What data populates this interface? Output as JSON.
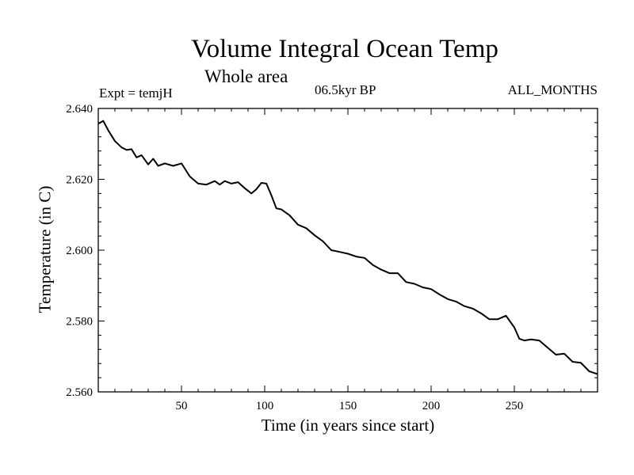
{
  "chart_data": {
    "type": "line",
    "title": "Volume Integral Ocean Temp",
    "subtitle": "Whole area",
    "left_label": "Expt = temjH",
    "center_label": "06.5kyr BP",
    "right_label": "ALL_MONTHS",
    "xlabel": "Time (in years since start)",
    "ylabel": "Temperature (in C)",
    "xlim": [
      0,
      300
    ],
    "ylim": [
      2.56,
      2.64
    ],
    "xticks": [
      50,
      100,
      150,
      200,
      250
    ],
    "xtick_labels": [
      "50",
      "100",
      "150",
      "200",
      "250"
    ],
    "yticks": [
      2.56,
      2.58,
      2.6,
      2.62,
      2.64
    ],
    "ytick_labels": [
      "2.560",
      "2.580",
      "2.600",
      "2.620",
      "2.640"
    ],
    "grid": false,
    "series": [
      {
        "name": "temjH",
        "color": "#000000",
        "x": [
          0,
          3,
          6,
          10,
          14,
          17,
          20,
          23,
          26,
          30,
          33,
          36,
          40,
          45,
          50,
          55,
          60,
          65,
          70,
          73,
          76,
          80,
          84,
          88,
          92,
          95,
          98,
          101,
          104,
          107,
          110,
          115,
          120,
          125,
          130,
          135,
          140,
          145,
          150,
          155,
          160,
          165,
          170,
          175,
          180,
          185,
          190,
          195,
          200,
          205,
          210,
          215,
          220,
          225,
          230,
          235,
          240,
          245,
          250,
          253,
          256,
          260,
          265,
          270,
          275,
          280,
          285,
          290,
          295,
          300
        ],
        "y": [
          2.6357,
          2.6365,
          2.6338,
          2.6308,
          2.629,
          2.6283,
          2.6285,
          2.6262,
          2.6268,
          2.6242,
          2.6258,
          2.6238,
          2.6245,
          2.6238,
          2.6245,
          2.6208,
          2.6188,
          2.6185,
          2.6195,
          2.6185,
          2.6195,
          2.6188,
          2.6192,
          2.6175,
          2.616,
          2.6172,
          2.619,
          2.6188,
          2.6155,
          2.6118,
          2.6115,
          2.6098,
          2.6072,
          2.6062,
          2.6042,
          2.6025,
          2.6,
          2.5995,
          2.599,
          2.5982,
          2.5978,
          2.5958,
          2.5945,
          2.5935,
          2.5935,
          2.591,
          2.5905,
          2.5895,
          2.589,
          2.5875,
          2.5862,
          2.5855,
          2.5842,
          2.5835,
          2.5822,
          2.5805,
          2.5805,
          2.5815,
          2.5782,
          2.575,
          2.5745,
          2.5748,
          2.5745,
          2.5725,
          2.5705,
          2.5708,
          2.5685,
          2.5682,
          2.5658,
          2.565
        ]
      }
    ]
  }
}
